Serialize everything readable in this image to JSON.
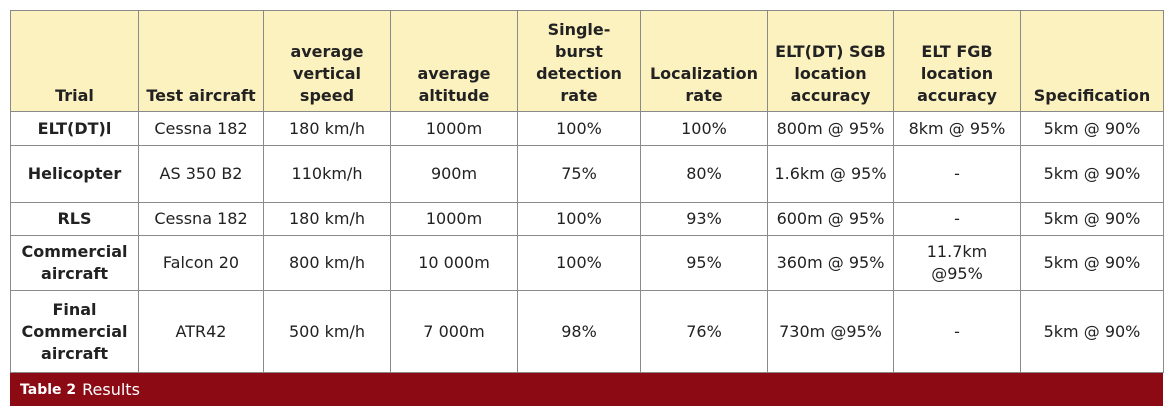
{
  "table": {
    "headers": [
      "Trial",
      "Test aircraft",
      "average vertical speed",
      "average altitude",
      "Single-burst detection rate",
      "Localization rate",
      "ELT(DT) SGB location accuracy",
      "ELT FGB location accuracy",
      "Specification"
    ],
    "rows": [
      [
        "ELT(DT)l",
        "Cessna 182",
        "180 km/h",
        "1000m",
        "100%",
        "100%",
        "800m @ 95%",
        "8km @ 95%",
        "5km @ 90%"
      ],
      [
        "Helicopter",
        "AS 350 B2",
        "110km/h",
        "900m",
        "75%",
        "80%",
        "1.6km @ 95%",
        "-",
        "5km @ 90%"
      ],
      [
        "RLS",
        "Cessna 182",
        "180 km/h",
        "1000m",
        "100%",
        "93%",
        "600m @ 95%",
        "-",
        "5km @ 90%"
      ],
      [
        "Commercial aircraft",
        "Falcon 20",
        "800 km/h",
        "10 000m",
        "100%",
        "95%",
        "360m @ 95%",
        "11.7km @95%",
        "5km @ 90%"
      ],
      [
        "Final Commercial aircraft",
        "ATR42",
        "500 km/h",
        "7 000m",
        "98%",
        "76%",
        "730m @95%",
        "-",
        "5km @ 90%"
      ]
    ]
  },
  "caption": {
    "label": "Table 2",
    "text": "Results"
  }
}
